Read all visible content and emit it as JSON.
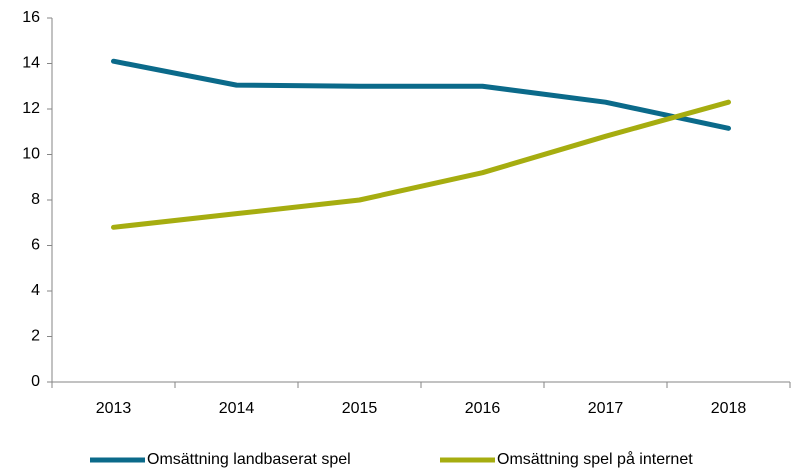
{
  "chart_data": {
    "type": "line",
    "categories": [
      "2013",
      "2014",
      "2015",
      "2016",
      "2017",
      "2018"
    ],
    "series": [
      {
        "name": "Omsättning landbaserat spel",
        "color": "#0b6a8a",
        "values": [
          14.1,
          13.05,
          13.0,
          13.0,
          12.3,
          11.15
        ]
      },
      {
        "name": "Omsättning spel på internet",
        "color": "#a6ad10",
        "values": [
          6.8,
          7.4,
          8.0,
          9.2,
          10.8,
          12.3
        ]
      }
    ],
    "ylim": [
      0,
      16
    ],
    "yticks": [
      0,
      2,
      4,
      6,
      8,
      10,
      12,
      14,
      16
    ],
    "grid": false,
    "legend": "bottom"
  }
}
